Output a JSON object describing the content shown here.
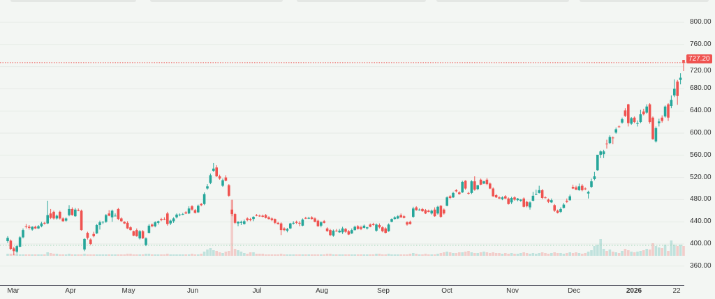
{
  "chart_data": {
    "type": "candlestick",
    "title": "",
    "last_price": "727.20",
    "colors": {
      "up": "#26a69a",
      "down": "#ef5350",
      "background": "#f3f6f3"
    },
    "ylim": [
      340,
      830
    ],
    "y_ticks": [
      "800.00",
      "760.00",
      "720.00",
      "680.00",
      "640.00",
      "600.00",
      "560.00",
      "520.00",
      "480.00",
      "440.00",
      "400.00",
      "360.00"
    ],
    "x_tick_labels": [
      "Mar",
      "Apr",
      "May",
      "Jun",
      "Jul",
      "Aug",
      "Sep",
      "Oct",
      "Nov",
      "Dec",
      "2026",
      "22"
    ],
    "grid": true,
    "ohlc": [
      [
        405,
        414,
        402,
        411
      ],
      [
        406,
        408,
        389,
        391
      ],
      [
        392,
        395,
        380,
        387
      ],
      [
        386,
        398,
        383,
        396
      ],
      [
        395,
        414,
        394,
        412
      ],
      [
        412,
        428,
        410,
        425
      ],
      [
        432,
        436,
        428,
        431
      ],
      [
        431,
        434,
        426,
        429
      ],
      [
        426,
        432,
        424,
        431
      ],
      [
        431,
        433,
        427,
        428
      ],
      [
        428,
        434,
        427,
        432
      ],
      [
        432,
        440,
        430,
        437
      ],
      [
        438,
        440,
        435,
        437
      ],
      [
        437,
        478,
        436,
        452
      ],
      [
        455,
        463,
        445,
        447
      ],
      [
        458,
        460,
        444,
        446
      ],
      [
        446,
        453,
        444,
        451
      ],
      [
        458,
        460,
        444,
        446
      ],
      [
        446,
        448,
        440,
        441
      ],
      [
        442,
        448,
        440,
        446
      ],
      [
        452,
        470,
        450,
        463
      ],
      [
        463,
        466,
        451,
        452
      ],
      [
        450,
        465,
        449,
        462
      ],
      [
        461,
        464,
        459,
        460
      ],
      [
        460,
        462,
        424,
        425
      ],
      [
        390,
        410,
        387,
        409
      ],
      [
        420,
        422,
        408,
        411
      ],
      [
        408,
        410,
        398,
        400
      ],
      [
        418,
        422,
        412,
        414
      ],
      [
        419,
        436,
        418,
        434
      ],
      [
        434,
        442,
        426,
        439
      ],
      [
        439,
        441,
        436,
        440
      ],
      [
        440,
        454,
        438,
        452
      ],
      [
        455,
        461,
        450,
        451
      ],
      [
        448,
        462,
        440,
        460
      ],
      [
        451,
        455,
        450,
        451
      ],
      [
        463,
        465,
        443,
        445
      ],
      [
        446,
        448,
        440,
        441
      ],
      [
        440,
        441,
        436,
        437
      ],
      [
        438,
        441,
        427,
        428
      ],
      [
        430,
        432,
        424,
        425
      ],
      [
        423,
        424,
        414,
        415
      ],
      [
        425,
        428,
        413,
        414
      ],
      [
        410,
        425,
        408,
        423
      ],
      [
        423,
        425,
        409,
        410
      ],
      [
        398,
        412,
        396,
        410
      ],
      [
        420,
        436,
        419,
        433
      ],
      [
        435,
        437,
        430,
        432
      ],
      [
        432,
        441,
        430,
        439
      ],
      [
        438,
        442,
        435,
        441
      ],
      [
        445,
        447,
        441,
        443
      ],
      [
        445,
        448,
        443,
        444
      ],
      [
        455,
        458,
        433,
        436
      ],
      [
        437,
        444,
        434,
        442
      ],
      [
        441,
        448,
        438,
        446
      ],
      [
        448,
        455,
        446,
        453
      ],
      [
        452,
        455,
        450,
        453
      ],
      [
        454,
        456,
        452,
        454
      ],
      [
        457,
        459,
        454,
        455
      ],
      [
        455,
        468,
        454,
        464
      ],
      [
        468,
        470,
        460,
        462
      ],
      [
        461,
        463,
        455,
        456
      ],
      [
        457,
        471,
        456,
        469
      ],
      [
        472,
        474,
        468,
        470
      ],
      [
        472,
        493,
        470,
        490
      ],
      [
        500,
        508,
        498,
        504
      ],
      [
        510,
        527,
        508,
        524
      ],
      [
        532,
        546,
        530,
        536
      ],
      [
        538,
        542,
        521,
        522
      ],
      [
        522,
        525,
        516,
        518
      ],
      [
        505,
        518,
        503,
        515
      ],
      [
        520,
        524,
        513,
        514
      ],
      [
        506,
        508,
        485,
        487
      ],
      [
        462,
        480,
        450,
        454
      ],
      [
        454,
        456,
        436,
        438
      ],
      [
        437,
        441,
        432,
        440
      ],
      [
        438,
        442,
        434,
        440
      ],
      [
        436,
        444,
        435,
        441
      ],
      [
        446,
        448,
        441,
        443
      ],
      [
        445,
        447,
        441,
        443
      ],
      [
        445,
        450,
        441,
        449
      ],
      [
        452,
        454,
        450,
        451
      ],
      [
        451,
        453,
        449,
        450
      ],
      [
        451,
        453,
        448,
        449
      ],
      [
        452,
        454,
        446,
        447
      ],
      [
        448,
        450,
        444,
        445
      ],
      [
        446,
        448,
        441,
        443
      ],
      [
        445,
        446,
        436,
        438
      ],
      [
        438,
        440,
        435,
        436
      ],
      [
        437,
        439,
        416,
        425
      ],
      [
        428,
        430,
        423,
        425
      ],
      [
        424,
        429,
        421,
        427
      ],
      [
        428,
        438,
        427,
        437
      ],
      [
        437,
        441,
        435,
        438
      ],
      [
        440,
        442,
        436,
        438
      ],
      [
        438,
        441,
        432,
        437
      ],
      [
        433,
        446,
        432,
        444
      ],
      [
        447,
        449,
        445,
        446
      ],
      [
        447,
        449,
        445,
        447
      ],
      [
        448,
        450,
        444,
        445
      ],
      [
        446,
        448,
        439,
        440
      ],
      [
        442,
        444,
        431,
        432
      ],
      [
        433,
        441,
        430,
        439
      ],
      [
        441,
        443,
        437,
        438
      ],
      [
        428,
        430,
        422,
        423
      ],
      [
        425,
        427,
        414,
        416
      ],
      [
        415,
        426,
        413,
        424
      ],
      [
        424,
        427,
        422,
        423
      ],
      [
        421,
        427,
        420,
        424
      ],
      [
        421,
        431,
        418,
        428
      ],
      [
        427,
        429,
        420,
        422
      ],
      [
        423,
        425,
        416,
        417
      ],
      [
        419,
        428,
        418,
        425
      ],
      [
        425,
        433,
        424,
        431
      ],
      [
        432,
        434,
        426,
        427
      ],
      [
        430,
        433,
        425,
        427
      ],
      [
        429,
        435,
        428,
        433
      ],
      [
        428,
        431,
        426,
        430
      ],
      [
        435,
        437,
        430,
        431
      ],
      [
        436,
        438,
        433,
        434
      ],
      [
        424,
        437,
        422,
        435
      ],
      [
        434,
        437,
        428,
        430
      ],
      [
        430,
        432,
        421,
        423
      ],
      [
        428,
        430,
        419,
        420
      ],
      [
        423,
        437,
        422,
        435
      ],
      [
        440,
        446,
        439,
        445
      ],
      [
        445,
        450,
        444,
        448
      ],
      [
        446,
        452,
        445,
        450
      ],
      [
        452,
        455,
        447,
        448
      ],
      [
        450,
        452,
        446,
        447
      ],
      [
        439,
        441,
        433,
        435
      ],
      [
        440,
        442,
        435,
        436
      ],
      [
        449,
        467,
        447,
        464
      ],
      [
        466,
        468,
        460,
        461
      ],
      [
        461,
        464,
        460,
        462
      ],
      [
        463,
        465,
        458,
        459
      ],
      [
        461,
        463,
        454,
        455
      ],
      [
        460,
        462,
        457,
        458
      ],
      [
        455,
        462,
        453,
        460
      ],
      [
        462,
        466,
        449,
        450
      ],
      [
        455,
        469,
        453,
        467
      ],
      [
        469,
        470,
        447,
        449
      ],
      [
        462,
        464,
        453,
        455
      ],
      [
        469,
        486,
        468,
        484
      ],
      [
        486,
        488,
        481,
        483
      ],
      [
        484,
        494,
        483,
        492
      ],
      [
        497,
        499,
        493,
        495
      ],
      [
        493,
        495,
        489,
        490
      ],
      [
        493,
        514,
        492,
        512
      ],
      [
        514,
        515,
        498,
        500
      ],
      [
        492,
        494,
        489,
        491
      ],
      [
        492,
        515,
        490,
        513
      ],
      [
        513,
        522,
        496,
        498
      ],
      [
        499,
        506,
        497,
        506
      ],
      [
        516,
        518,
        506,
        507
      ],
      [
        509,
        514,
        508,
        513
      ],
      [
        516,
        519,
        506,
        508
      ],
      [
        509,
        511,
        499,
        500
      ],
      [
        500,
        502,
        485,
        486
      ],
      [
        488,
        490,
        483,
        484
      ],
      [
        484,
        486,
        481,
        482
      ],
      [
        481,
        486,
        479,
        484
      ],
      [
        486,
        488,
        481,
        482
      ],
      [
        482,
        484,
        471,
        472
      ],
      [
        475,
        485,
        472,
        483
      ],
      [
        484,
        486,
        478,
        480
      ],
      [
        479,
        483,
        477,
        482
      ],
      [
        478,
        481,
        476,
        480
      ],
      [
        482,
        484,
        466,
        467
      ],
      [
        476,
        478,
        466,
        468
      ],
      [
        466,
        477,
        462,
        475
      ],
      [
        478,
        494,
        477,
        487
      ],
      [
        490,
        498,
        488,
        490
      ],
      [
        492,
        505,
        491,
        497
      ],
      [
        497,
        499,
        481,
        483
      ],
      [
        484,
        486,
        482,
        483
      ],
      [
        480,
        482,
        474,
        476
      ],
      [
        475,
        482,
        474,
        479
      ],
      [
        470,
        472,
        458,
        460
      ],
      [
        460,
        462,
        455,
        456
      ],
      [
        458,
        466,
        456,
        463
      ],
      [
        465,
        474,
        464,
        471
      ],
      [
        478,
        482,
        474,
        476
      ],
      [
        479,
        489,
        478,
        486
      ],
      [
        503,
        507,
        499,
        500
      ],
      [
        502,
        505,
        497,
        498
      ],
      [
        497,
        509,
        496,
        504
      ],
      [
        505,
        508,
        495,
        497
      ],
      [
        500,
        502,
        497,
        499
      ],
      [
        491,
        496,
        482,
        494
      ],
      [
        503,
        518,
        501,
        513
      ],
      [
        517,
        530,
        515,
        522
      ],
      [
        533,
        561,
        532,
        561
      ],
      [
        561,
        569,
        555,
        567
      ],
      [
        562,
        570,
        555,
        567
      ],
      [
        581,
        588,
        572,
        580
      ],
      [
        582,
        596,
        580,
        593
      ],
      [
        592,
        594,
        580,
        591
      ],
      [
        601,
        610,
        599,
        607
      ],
      [
        612,
        614,
        610,
        611
      ],
      [
        619,
        628,
        617,
        625
      ],
      [
        641,
        645,
        629,
        631
      ],
      [
        652,
        653,
        612,
        618
      ],
      [
        617,
        629,
        615,
        627
      ],
      [
        628,
        630,
        618,
        620
      ],
      [
        617,
        623,
        612,
        618
      ],
      [
        620,
        642,
        618,
        634
      ],
      [
        639,
        644,
        632,
        634
      ],
      [
        637,
        652,
        635,
        648
      ],
      [
        652,
        654,
        617,
        620
      ],
      [
        628,
        630,
        588,
        589
      ],
      [
        585,
        612,
        583,
        609
      ],
      [
        618,
        626,
        612,
        621
      ],
      [
        628,
        632,
        619,
        622
      ],
      [
        630,
        650,
        628,
        648
      ],
      [
        652,
        654,
        622,
        628
      ],
      [
        649,
        668,
        645,
        660
      ],
      [
        668,
        697,
        665,
        680
      ],
      [
        693,
        696,
        651,
        667
      ],
      [
        696,
        708,
        688,
        700
      ],
      [
        732,
        732,
        712,
        727
      ]
    ],
    "volume_relative": [
      3,
      3,
      3,
      3,
      2,
      2,
      2,
      2,
      2,
      2,
      2,
      2,
      2,
      5,
      4,
      3,
      3,
      2,
      2,
      2,
      3,
      2,
      2,
      2,
      2,
      3,
      2,
      2,
      2,
      2,
      2,
      2,
      2,
      2,
      2,
      2,
      2,
      2,
      2,
      3,
      3,
      2,
      2,
      2,
      2,
      3,
      3,
      2,
      2,
      2,
      2,
      2,
      3,
      2,
      2,
      2,
      2,
      2,
      2,
      2,
      3,
      2,
      2,
      3,
      6,
      9,
      11,
      8,
      7,
      5,
      4,
      6,
      7,
      80,
      10,
      8,
      6,
      4,
      3,
      5,
      5,
      3,
      3,
      3,
      2,
      2,
      2,
      2,
      2,
      3,
      2,
      2,
      2,
      2,
      2,
      2,
      2,
      2,
      2,
      2,
      2,
      2,
      2,
      2,
      3,
      3,
      2,
      2,
      2,
      2,
      2,
      2,
      2,
      2,
      2,
      2,
      2,
      2,
      2,
      2,
      3,
      3,
      2,
      2,
      3,
      2,
      2,
      2,
      2,
      2,
      2,
      3,
      4,
      3,
      2,
      2,
      3,
      2,
      2,
      2,
      3,
      4,
      5,
      6,
      5,
      4,
      4,
      5,
      5,
      6,
      7,
      5,
      4,
      4,
      5,
      6,
      5,
      4,
      5,
      4,
      4,
      3,
      4,
      3,
      4,
      3,
      3,
      4,
      5,
      4,
      3,
      4,
      3,
      4,
      5,
      4,
      3,
      4,
      5,
      4,
      4,
      3,
      4,
      5,
      4,
      5,
      4,
      3,
      4,
      6,
      8,
      14,
      16,
      24,
      10,
      7,
      9,
      6,
      5,
      4,
      7,
      10,
      8,
      6,
      5,
      6,
      7,
      8,
      10,
      9,
      18,
      14,
      12,
      11,
      16,
      7,
      22,
      16,
      14,
      16,
      14
    ]
  }
}
